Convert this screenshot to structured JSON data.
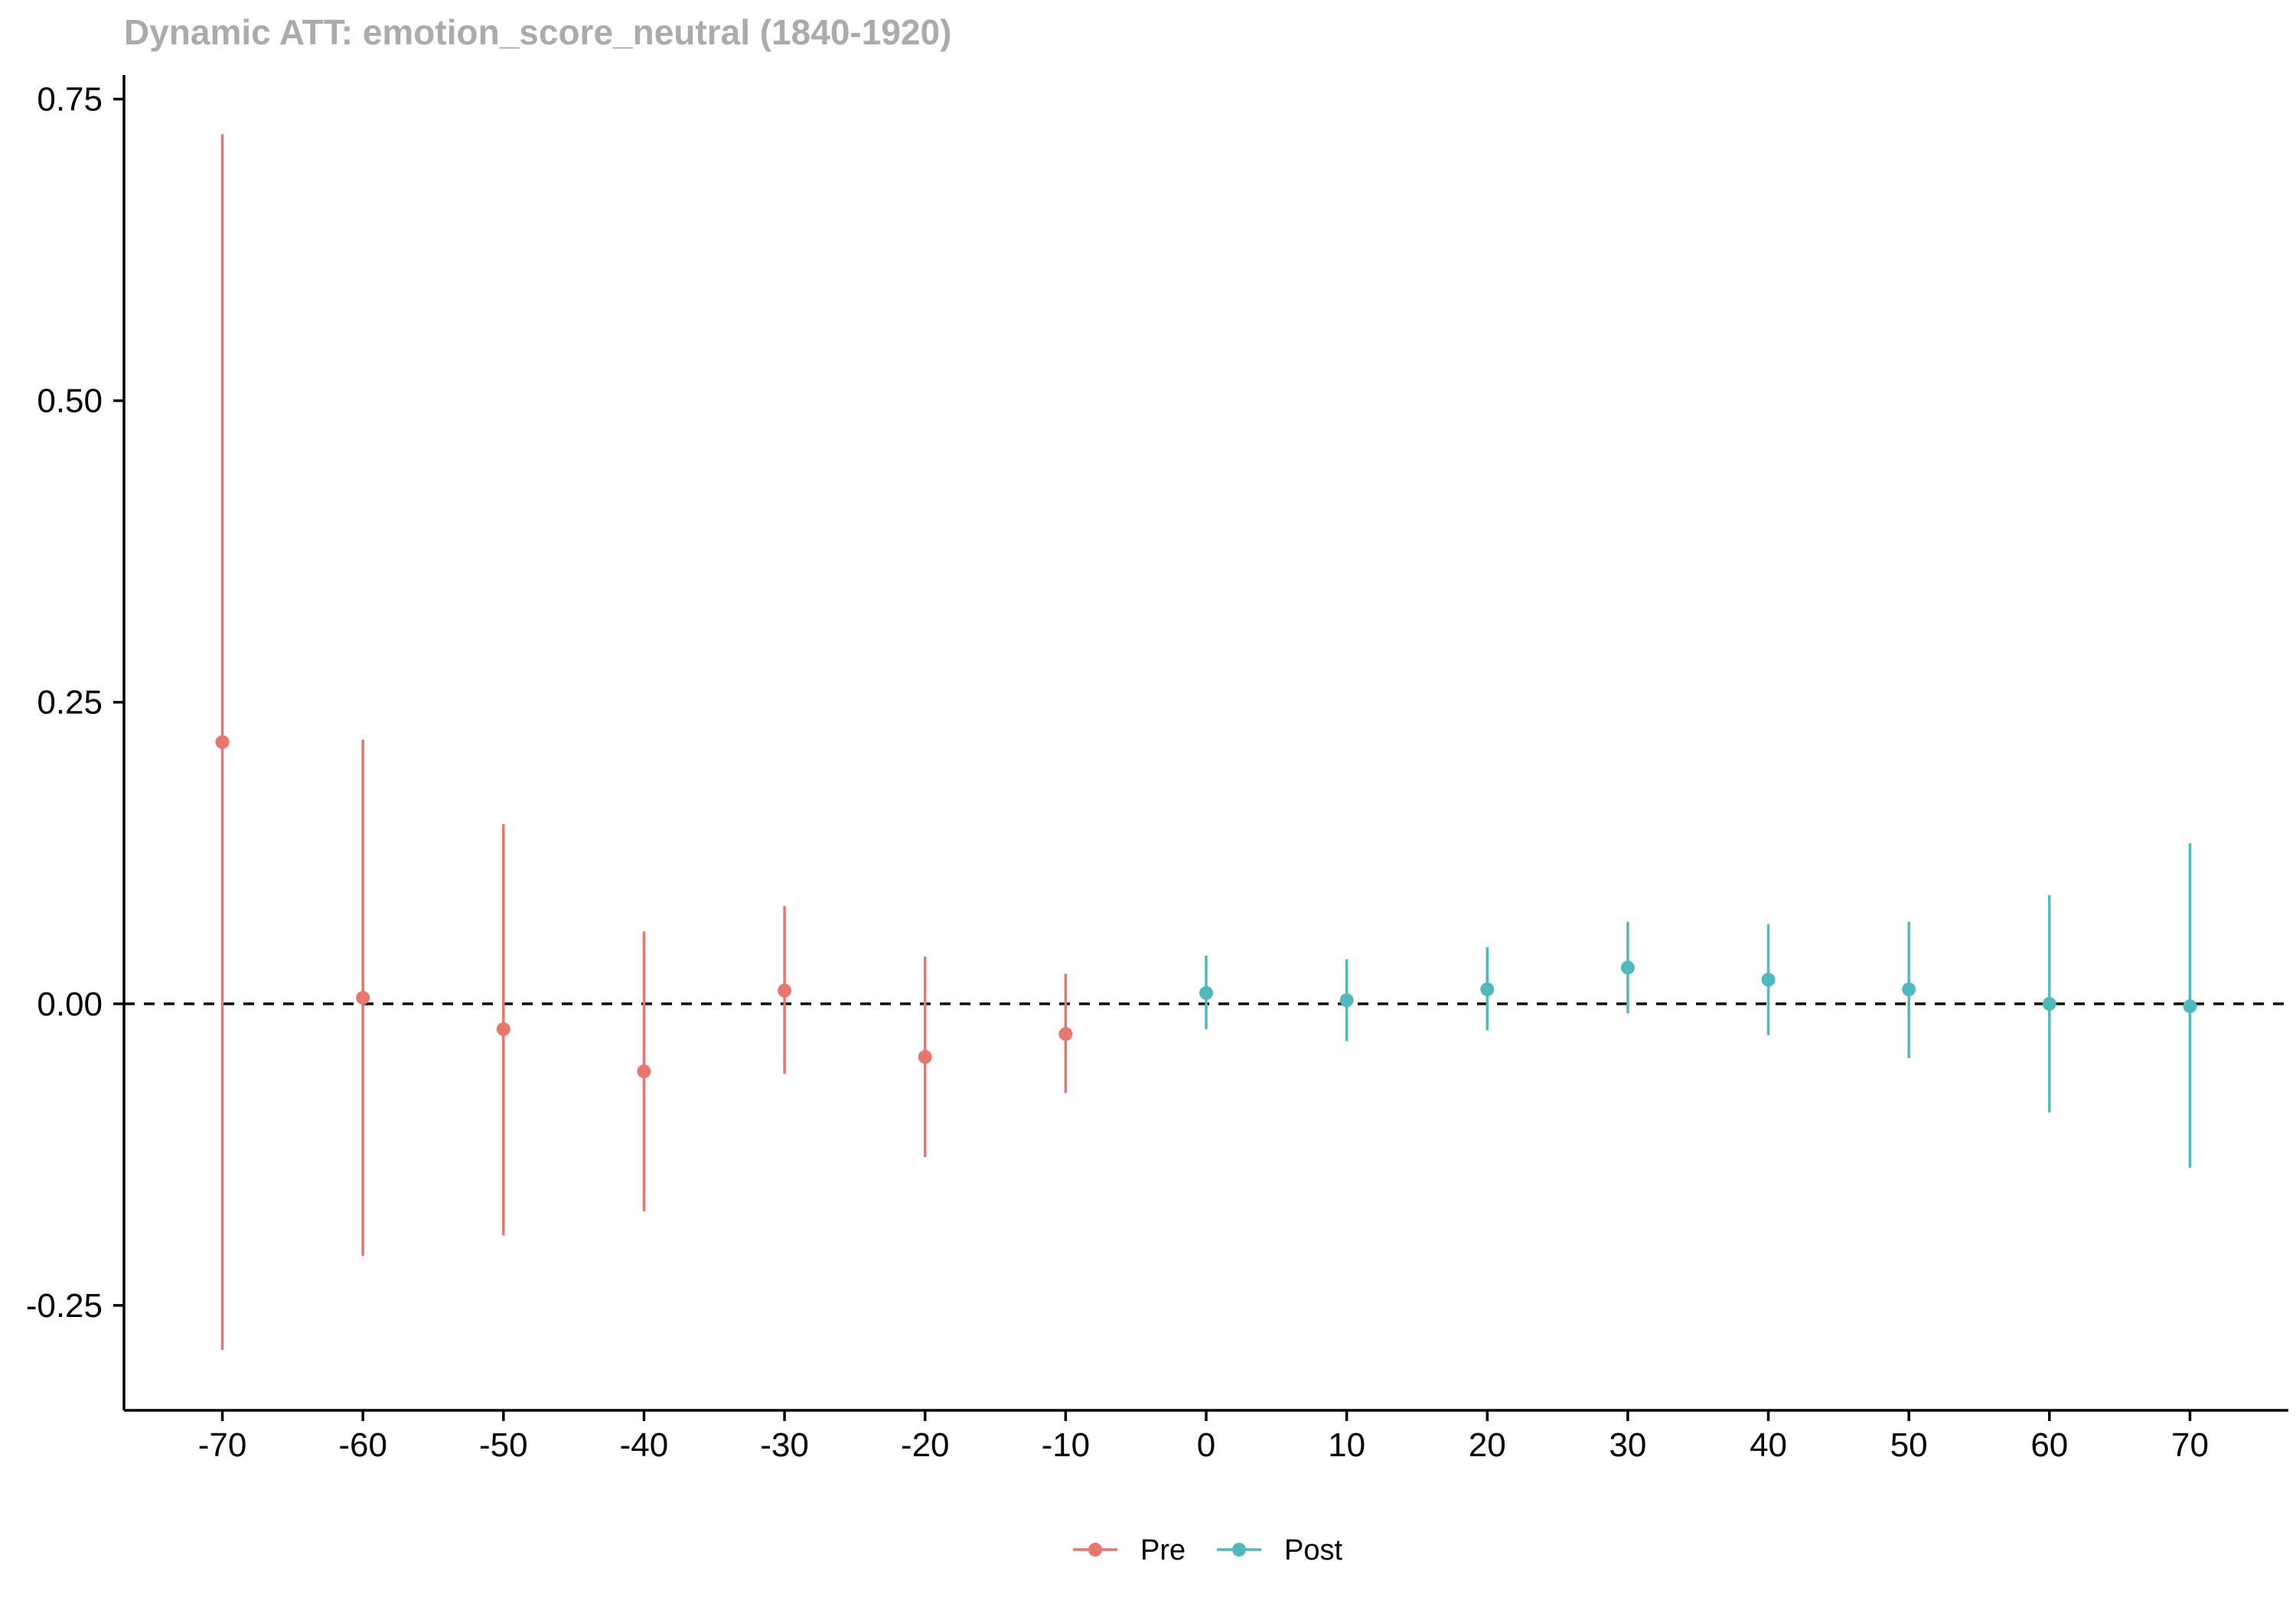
{
  "chart_data": {
    "type": "scatter",
    "title": "Dynamic ATT: emotion_score_neutral (1840-1920)",
    "xlabel": "",
    "ylabel": "",
    "xlim": [
      -77,
      77
    ],
    "ylim": [
      -0.337,
      0.77
    ],
    "x_ticks": [
      -70,
      -60,
      -50,
      -40,
      -30,
      -20,
      -10,
      0,
      10,
      20,
      30,
      40,
      50,
      60,
      70
    ],
    "x_tick_labels": [
      "-70",
      "-60",
      "-50",
      "-40",
      "-30",
      "-20",
      "-10",
      "0",
      "10",
      "20",
      "30",
      "40",
      "50",
      "60",
      "70"
    ],
    "y_ticks": [
      -0.25,
      0,
      0.25,
      0.5,
      0.75
    ],
    "y_tick_labels": [
      "-0.25",
      "0.00",
      "0.25",
      "0.50",
      "0.75"
    ],
    "reference_line": {
      "y": 0,
      "style": "dashed",
      "color": "#000000"
    },
    "grid": false,
    "legend_position": "bottom",
    "series": [
      {
        "name": "Pre",
        "color": "#E8766D",
        "points": [
          {
            "x": -70,
            "y": 0.217,
            "lo": -0.287,
            "hi": 0.721
          },
          {
            "x": -60,
            "y": 0.005,
            "lo": -0.209,
            "hi": 0.219
          },
          {
            "x": -50,
            "y": -0.021,
            "lo": -0.192,
            "hi": 0.149
          },
          {
            "x": -40,
            "y": -0.056,
            "lo": -0.172,
            "hi": 0.06
          },
          {
            "x": -30,
            "y": 0.011,
            "lo": -0.058,
            "hi": 0.081
          },
          {
            "x": -20,
            "y": -0.044,
            "lo": -0.127,
            "hi": 0.039
          },
          {
            "x": -10,
            "y": -0.025,
            "lo": -0.074,
            "hi": 0.025
          }
        ]
      },
      {
        "name": "Post",
        "color": "#4FB9BE",
        "points": [
          {
            "x": 0,
            "y": 0.009,
            "lo": -0.021,
            "hi": 0.04
          },
          {
            "x": 10,
            "y": 0.003,
            "lo": -0.031,
            "hi": 0.037
          },
          {
            "x": 20,
            "y": 0.012,
            "lo": -0.022,
            "hi": 0.047
          },
          {
            "x": 30,
            "y": 0.03,
            "lo": -0.008,
            "hi": 0.068
          },
          {
            "x": 40,
            "y": 0.02,
            "lo": -0.026,
            "hi": 0.066
          },
          {
            "x": 50,
            "y": 0.012,
            "lo": -0.045,
            "hi": 0.068
          },
          {
            "x": 60,
            "y": 0.0,
            "lo": -0.09,
            "hi": 0.09
          },
          {
            "x": 70,
            "y": -0.002,
            "lo": -0.136,
            "hi": 0.133
          }
        ]
      }
    ]
  }
}
